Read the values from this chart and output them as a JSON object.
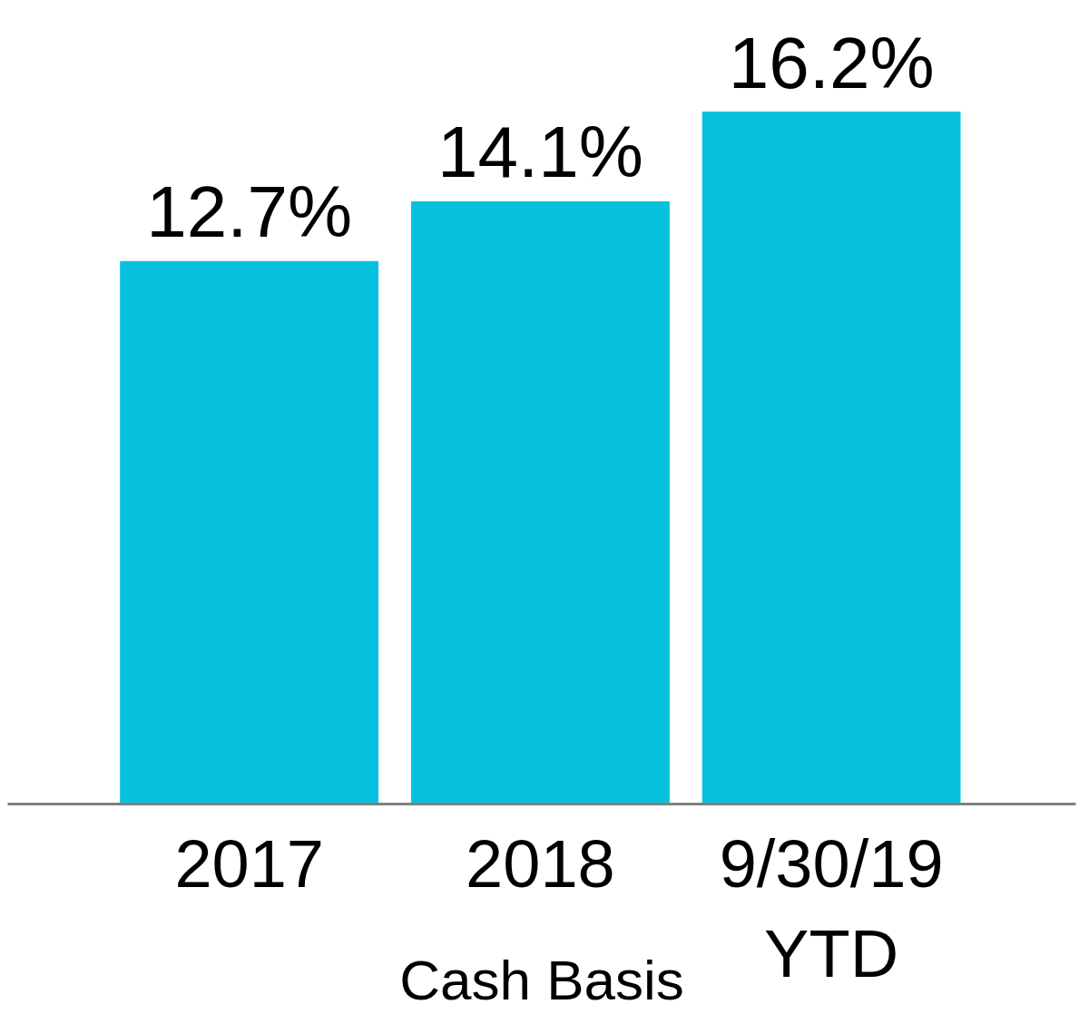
{
  "chart_data": {
    "type": "bar",
    "xlabel": "Cash Basis",
    "categories": [
      "2017",
      "2018",
      "9/30/19\nYTD"
    ],
    "values": [
      12.7,
      14.1,
      16.2
    ],
    "value_labels": [
      "12.7%",
      "14.1%",
      "16.2%"
    ],
    "color": "#06c1de",
    "grid": false
  }
}
